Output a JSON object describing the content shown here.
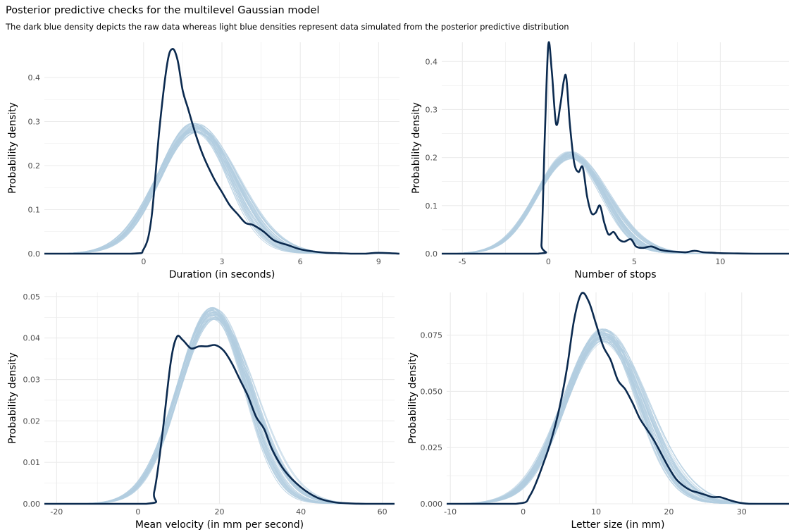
{
  "title": "Posterior predictive checks for the multilevel Gaussian model",
  "subtitle": "The dark blue density depicts the raw data whereas light blue densities represent data simulated from the posterior predictive distribution",
  "colors": {
    "observed": "#0b2a4f",
    "simulated": "#b3cde0",
    "grid": "#ebebeb",
    "tick_text": "#4d4d4d"
  },
  "n_simulated_draws": 60,
  "chart_data": [
    {
      "type": "line",
      "xlabel": "Duration (in seconds)",
      "ylabel": "Probability density",
      "xlim": [
        -3.8,
        9.8
      ],
      "ylim": [
        0,
        0.48
      ],
      "xticks": [
        0,
        3,
        6,
        9
      ],
      "xtick_labels": [
        "0",
        "3",
        "6",
        "9"
      ],
      "yticks": [
        0,
        0.1,
        0.2,
        0.3,
        0.4
      ],
      "ytick_labels": [
        "0.0",
        "0.1",
        "0.2",
        "0.3",
        "0.4"
      ],
      "grid": true,
      "simulated": {
        "mu": 2.0,
        "sigma": 1.42,
        "peak": 0.285,
        "peak_spread": 0.012,
        "mu_spread": 0.12
      },
      "observed": {
        "x": [
          -3.8,
          -0.5,
          0,
          0.3,
          0.6,
          0.9,
          1.1,
          1.3,
          1.5,
          1.7,
          2.0,
          2.3,
          2.7,
          3.0,
          3.3,
          3.6,
          3.9,
          4.2,
          4.6,
          5.0,
          5.5,
          6.0,
          6.5,
          7.0,
          7.5,
          8.0,
          8.5,
          9.0,
          9.8
        ],
        "y": [
          0,
          0,
          0.01,
          0.08,
          0.28,
          0.43,
          0.465,
          0.44,
          0.37,
          0.33,
          0.27,
          0.22,
          0.17,
          0.14,
          0.11,
          0.09,
          0.07,
          0.065,
          0.05,
          0.03,
          0.02,
          0.01,
          0.005,
          0.002,
          0.001,
          0,
          0,
          0.002,
          0
        ]
      }
    },
    {
      "type": "line",
      "xlabel": "Number of stops",
      "ylabel": "Probability density",
      "xlim": [
        -6.2,
        14
      ],
      "ylim": [
        0,
        0.44
      ],
      "xticks": [
        -5,
        0,
        5,
        10
      ],
      "xtick_labels": [
        "-5",
        "0",
        "5",
        "10"
      ],
      "yticks": [
        0,
        0.1,
        0.2,
        0.3,
        0.4
      ],
      "ytick_labels": [
        "0.0",
        "0.1",
        "0.2",
        "0.3",
        "0.4"
      ],
      "grid": true,
      "simulated": {
        "mu": 1.3,
        "sigma": 1.95,
        "peak": 0.205,
        "peak_spread": 0.008,
        "mu_spread": 0.15
      },
      "observed": {
        "x": [
          -6.2,
          -0.6,
          -0.4,
          -0.2,
          0,
          0.2,
          0.45,
          0.7,
          0.9,
          1.05,
          1.25,
          1.5,
          1.75,
          2.0,
          2.25,
          2.5,
          2.75,
          3.0,
          3.25,
          3.5,
          3.8,
          4.1,
          4.4,
          4.8,
          5.1,
          5.5,
          6.0,
          6.5,
          7.0,
          7.5,
          8.0,
          8.5,
          9.0,
          9.5,
          10.0,
          11.0,
          12.0,
          14.0
        ],
        "y": [
          0,
          0,
          0.02,
          0.25,
          0.435,
          0.38,
          0.27,
          0.31,
          0.36,
          0.365,
          0.27,
          0.19,
          0.17,
          0.18,
          0.12,
          0.085,
          0.085,
          0.1,
          0.065,
          0.04,
          0.045,
          0.03,
          0.025,
          0.03,
          0.015,
          0.012,
          0.015,
          0.008,
          0.005,
          0.004,
          0.003,
          0.006,
          0.003,
          0.002,
          0.001,
          0.0005,
          0,
          0
        ]
      }
    },
    {
      "type": "line",
      "xlabel": "Mean velocity (in mm per second)",
      "ylabel": "Probability density",
      "xlim": [
        -23,
        63
      ],
      "ylim": [
        0,
        0.051
      ],
      "xticks": [
        -20,
        0,
        20,
        40,
        60
      ],
      "xtick_labels": [
        "-20",
        "0",
        "20",
        "40",
        "60"
      ],
      "yticks": [
        0,
        0.01,
        0.02,
        0.03,
        0.04,
        0.05
      ],
      "ytick_labels": [
        "0.00",
        "0.01",
        "0.02",
        "0.03",
        "0.04",
        "0.05"
      ],
      "grid": true,
      "simulated": {
        "mu": 18.5,
        "sigma": 8.6,
        "peak": 0.046,
        "peak_spread": 0.0015,
        "mu_spread": 0.7
      },
      "observed": {
        "x": [
          -23,
          2,
          4,
          6,
          8,
          9.5,
          11,
          13,
          15,
          17,
          19,
          21,
          23,
          25,
          27,
          29,
          31,
          33,
          36,
          40,
          44,
          48,
          52,
          56,
          63
        ],
        "y": [
          0,
          0,
          0.003,
          0.017,
          0.034,
          0.0402,
          0.0395,
          0.0375,
          0.038,
          0.038,
          0.0383,
          0.037,
          0.034,
          0.03,
          0.026,
          0.021,
          0.018,
          0.013,
          0.008,
          0.004,
          0.0015,
          0.0004,
          0.0001,
          0,
          0
        ]
      }
    },
    {
      "type": "line",
      "xlabel": "Letter size (in mm)",
      "ylabel": "Probability density",
      "xlim": [
        -10.5,
        36.5
      ],
      "ylim": [
        0,
        0.094
      ],
      "xticks": [
        -10,
        0,
        10,
        20,
        30
      ],
      "xtick_labels": [
        "-10",
        "0",
        "10",
        "20",
        "30"
      ],
      "yticks": [
        0,
        0.025,
        0.05,
        0.075
      ],
      "ytick_labels": [
        "0.000",
        "0.025",
        "0.050",
        "0.075"
      ],
      "grid": true,
      "simulated": {
        "mu": 11.0,
        "sigma": 5.3,
        "peak": 0.075,
        "peak_spread": 0.003,
        "mu_spread": 0.45
      },
      "observed": {
        "x": [
          -10.5,
          -1,
          1,
          3,
          4,
          5,
          6,
          7,
          8,
          9,
          10,
          11,
          12,
          13,
          14,
          15,
          16,
          17,
          18,
          19,
          20,
          21,
          22,
          23,
          24,
          25,
          26,
          27,
          28,
          29,
          31,
          36.5
        ],
        "y": [
          0,
          0,
          0.004,
          0.02,
          0.03,
          0.043,
          0.06,
          0.082,
          0.0935,
          0.09,
          0.08,
          0.07,
          0.064,
          0.055,
          0.051,
          0.045,
          0.038,
          0.033,
          0.028,
          0.022,
          0.016,
          0.011,
          0.008,
          0.006,
          0.005,
          0.004,
          0.003,
          0.003,
          0.002,
          0.001,
          0,
          0
        ]
      }
    }
  ]
}
